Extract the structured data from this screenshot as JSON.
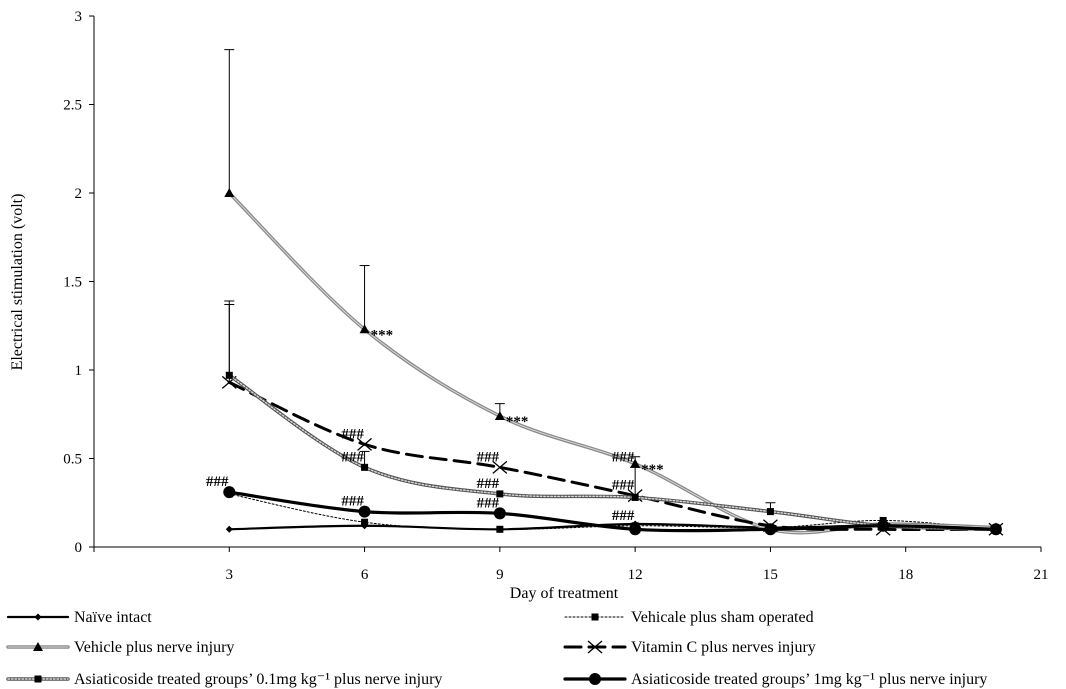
{
  "chart_data": {
    "type": "line",
    "title": "",
    "xlabel": "Day of treatment",
    "ylabel": "Electrical stimulation (volt)",
    "xlim": [
      0,
      21
    ],
    "ylim": [
      0,
      3
    ],
    "x_ticks": [
      3,
      6,
      9,
      12,
      15,
      18,
      21
    ],
    "y_ticks": [
      0,
      0.5,
      1,
      1.5,
      2,
      2.5,
      3
    ],
    "y_tick_labels": [
      "0",
      "0.5",
      "1",
      "1.5",
      "2",
      "2.5",
      "3"
    ],
    "grid": false,
    "legend_position": "bottom",
    "series": [
      {
        "name": "Naïve intact",
        "color": "#000000",
        "line_style": "solid",
        "marker": "diamond",
        "x": [
          3,
          6,
          9,
          12,
          15,
          17.5,
          20
        ],
        "y": [
          0.1,
          0.12,
          0.1,
          0.13,
          0.11,
          0.12,
          0.1
        ]
      },
      {
        "name": "Vehicale plus sham operated",
        "color": "#000000",
        "line_style": "dotted",
        "marker": "square",
        "x": [
          3,
          6,
          9,
          12,
          15,
          17.5,
          20
        ],
        "y": [
          0.3,
          0.14,
          0.1,
          0.12,
          0.11,
          0.15,
          0.1
        ]
      },
      {
        "name": "Vehicle plus nerve injury",
        "color": "#8c8c8c",
        "line_style": "solid-double",
        "marker": "triangle",
        "x": [
          3,
          6,
          9,
          12,
          15,
          17.5,
          20
        ],
        "y": [
          2.0,
          1.23,
          0.74,
          0.47,
          0.1,
          0.13,
          0.11
        ],
        "error_up": [
          0.81,
          0.36,
          0.07,
          0.04,
          0,
          0,
          0
        ]
      },
      {
        "name": "Vitamin C plus nerves injury",
        "color": "#000000",
        "line_style": "dashed",
        "marker": "x",
        "x": [
          3,
          6,
          9,
          12,
          15,
          17.5,
          20
        ],
        "y": [
          0.93,
          0.58,
          0.45,
          0.29,
          0.12,
          0.1,
          0.1
        ],
        "error_up": [
          0.46,
          0,
          0,
          0,
          0,
          0,
          0
        ]
      },
      {
        "name": "Asiaticoside treated groups’ 0.1mg kg⁻¹ plus nerve injury",
        "color": "#555555",
        "line_style": "dotted-thick",
        "marker": "square",
        "x": [
          3,
          6,
          9,
          12,
          15,
          17.5,
          20
        ],
        "y": [
          0.97,
          0.45,
          0.3,
          0.28,
          0.2,
          0.12,
          0.1
        ],
        "error_up": [
          0.4,
          0.09,
          0,
          0.17,
          0.05,
          0,
          0
        ]
      },
      {
        "name": "Asiaticoside treated groups’ 1mg kg⁻¹ plus nerve injury",
        "color": "#000000",
        "line_style": "solid-thick",
        "marker": "circle",
        "x": [
          3,
          6,
          9,
          12,
          15,
          17.5,
          20
        ],
        "y": [
          0.31,
          0.2,
          0.19,
          0.1,
          0.1,
          0.12,
          0.1
        ]
      }
    ],
    "annotations": [
      {
        "text": "***",
        "x": 6,
        "y": 1.23
      },
      {
        "text": "***",
        "x": 9,
        "y": 0.74
      },
      {
        "text": "***",
        "x": 12,
        "y": 0.47
      },
      {
        "text": "###",
        "x": 3,
        "y": 0.31
      },
      {
        "text": "###",
        "x": 6,
        "y": 0.58
      },
      {
        "text": "###",
        "x": 6,
        "y": 0.45
      },
      {
        "text": "###",
        "x": 6,
        "y": 0.2
      },
      {
        "text": "###",
        "x": 9,
        "y": 0.45
      },
      {
        "text": "###",
        "x": 9,
        "y": 0.3
      },
      {
        "text": "###",
        "x": 9,
        "y": 0.19
      },
      {
        "text": "###",
        "x": 12,
        "y": 0.45
      },
      {
        "text": "###",
        "x": 12,
        "y": 0.29
      },
      {
        "text": "###",
        "x": 12,
        "y": 0.12
      }
    ]
  }
}
